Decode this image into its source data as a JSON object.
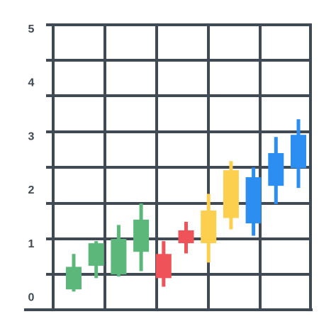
{
  "chart_data": {
    "type": "candlestick",
    "categories": [
      null,
      null,
      null,
      null,
      null,
      null,
      null,
      null,
      null,
      null,
      null
    ],
    "open": [
      0.16,
      0.6,
      0.44,
      0.86,
      0.82,
      1.26,
      1.02,
      1.49,
      1.39,
      2.09,
      2.42
    ],
    "high": [
      0.82,
      1.06,
      1.36,
      1.76,
      1.06,
      1.42,
      1.94,
      2.55,
      2.43,
      3.0,
      3.33
    ],
    "low": [
      0.12,
      0.37,
      0.4,
      0.5,
      0.21,
      0.83,
      0.66,
      1.28,
      1.16,
      1.75,
      2.05
    ],
    "close": [
      0.58,
      1.02,
      1.1,
      1.46,
      0.37,
      1.02,
      1.63,
      2.38,
      2.25,
      2.7,
      3.04
    ],
    "colors": [
      "#5cb87a",
      "#5cb87a",
      "#5cb87a",
      "#5cb87a",
      "#f0525a",
      "#f0525a",
      "#fcd04e",
      "#fcd04e",
      "#2b8ef0",
      "#2b8ef0",
      "#2b8ef0"
    ],
    "ylim": [
      -0.22,
      5.09
    ],
    "yticks": [
      0,
      1,
      2,
      3,
      4,
      5
    ]
  }
}
